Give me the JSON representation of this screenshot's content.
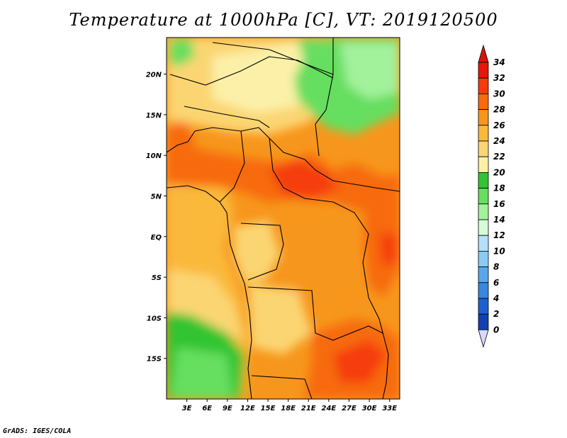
{
  "title": "Temperature at 1000hPa [C], VT: 2019120500",
  "footer": "GrADS: IGES/COLA",
  "map": {
    "lat_range": [
      -20,
      24.5
    ],
    "lon_range": [
      0,
      34.5
    ],
    "lat_ticks": [
      {
        "value": 20,
        "label": "20N"
      },
      {
        "value": 15,
        "label": "15N"
      },
      {
        "value": 10,
        "label": "10N"
      },
      {
        "value": 5,
        "label": "5N"
      },
      {
        "value": 0,
        "label": "EQ"
      },
      {
        "value": -5,
        "label": "5S"
      },
      {
        "value": -10,
        "label": "10S"
      },
      {
        "value": -15,
        "label": "15S"
      }
    ],
    "lon_ticks": [
      {
        "value": 3,
        "label": "3E"
      },
      {
        "value": 6,
        "label": "6E"
      },
      {
        "value": 9,
        "label": "9E"
      },
      {
        "value": 12,
        "label": "12E"
      },
      {
        "value": 15,
        "label": "15E"
      },
      {
        "value": 18,
        "label": "18E"
      },
      {
        "value": 21,
        "label": "21E"
      },
      {
        "value": 24,
        "label": "24E"
      },
      {
        "value": 27,
        "label": "27E"
      },
      {
        "value": 30,
        "label": "30E"
      },
      {
        "value": 33,
        "label": "33E"
      }
    ]
  },
  "colorbar": {
    "levels": [
      {
        "label": "34",
        "color": "#e8150a"
      },
      {
        "label": "32",
        "color": "#f53c0a"
      },
      {
        "label": "30",
        "color": "#f76b0e"
      },
      {
        "label": "28",
        "color": "#f7961c"
      },
      {
        "label": "26",
        "color": "#fab93a"
      },
      {
        "label": "24",
        "color": "#fbd572"
      },
      {
        "label": "22",
        "color": "#fcf0a8"
      },
      {
        "label": "20",
        "color": "#33c433"
      },
      {
        "label": "18",
        "color": "#66de5e"
      },
      {
        "label": "16",
        "color": "#a2f29c"
      },
      {
        "label": "14",
        "color": "#d5fbd8"
      },
      {
        "label": "12",
        "color": "#b4e0fa"
      },
      {
        "label": "10",
        "color": "#8ccaf5"
      },
      {
        "label": "8",
        "color": "#5aa6ec"
      },
      {
        "label": "6",
        "color": "#3a86e0"
      },
      {
        "label": "4",
        "color": "#1e5ed0"
      },
      {
        "label": "2",
        "color": "#1240b0"
      },
      {
        "label": "0",
        "color": "#0a2490"
      }
    ],
    "top_color": "#d8140a",
    "bottom_color": "#0c1e80",
    "under_color": "#d8d8ff"
  }
}
